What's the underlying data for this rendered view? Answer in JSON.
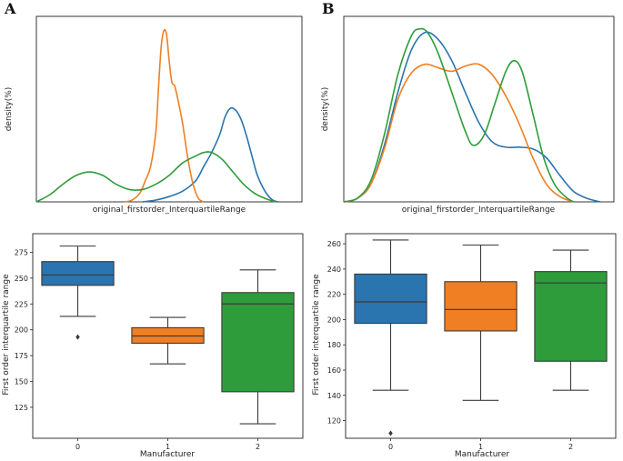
{
  "figure": {
    "panel_labels": [
      "A",
      "B"
    ]
  },
  "colors": {
    "manufacturer_0": "#2a74b0",
    "manufacturer_1": "#ef7f22",
    "manufacturer_2": "#2e9c3b",
    "line": "#3a3a3a"
  },
  "chart_data": [
    {
      "id": "density_A",
      "type": "line",
      "xlabel": "original_firstorder_InterquartileRange",
      "ylabel": "density(%)",
      "x_range": [
        0,
        1
      ],
      "y_range": [
        0,
        1
      ],
      "series": [
        {
          "name": "0",
          "points": [
            [
              0.4,
              0.0
            ],
            [
              0.45,
              0.01
            ],
            [
              0.5,
              0.03
            ],
            [
              0.55,
              0.06
            ],
            [
              0.6,
              0.12
            ],
            [
              0.63,
              0.2
            ],
            [
              0.66,
              0.28
            ],
            [
              0.69,
              0.38
            ],
            [
              0.71,
              0.48
            ],
            [
              0.73,
              0.53
            ],
            [
              0.75,
              0.52
            ],
            [
              0.77,
              0.47
            ],
            [
              0.79,
              0.38
            ],
            [
              0.81,
              0.27
            ],
            [
              0.83,
              0.16
            ],
            [
              0.85,
              0.09
            ],
            [
              0.87,
              0.04
            ],
            [
              0.89,
              0.01
            ],
            [
              0.91,
              0.0
            ]
          ]
        },
        {
          "name": "1",
          "points": [
            [
              0.33,
              0.0
            ],
            [
              0.36,
              0.01
            ],
            [
              0.39,
              0.05
            ],
            [
              0.41,
              0.12
            ],
            [
              0.43,
              0.2
            ],
            [
              0.45,
              0.4
            ],
            [
              0.46,
              0.65
            ],
            [
              0.47,
              0.88
            ],
            [
              0.48,
              0.97
            ],
            [
              0.49,
              0.95
            ],
            [
              0.5,
              0.8
            ],
            [
              0.51,
              0.68
            ],
            [
              0.52,
              0.66
            ],
            [
              0.53,
              0.6
            ],
            [
              0.55,
              0.45
            ],
            [
              0.57,
              0.25
            ],
            [
              0.59,
              0.1
            ],
            [
              0.61,
              0.02
            ],
            [
              0.63,
              0.0
            ]
          ]
        },
        {
          "name": "2",
          "points": [
            [
              0.0,
              0.0
            ],
            [
              0.05,
              0.04
            ],
            [
              0.1,
              0.1
            ],
            [
              0.15,
              0.15
            ],
            [
              0.2,
              0.17
            ],
            [
              0.25,
              0.15
            ],
            [
              0.3,
              0.1
            ],
            [
              0.35,
              0.07
            ],
            [
              0.4,
              0.07
            ],
            [
              0.45,
              0.1
            ],
            [
              0.5,
              0.15
            ],
            [
              0.55,
              0.22
            ],
            [
              0.6,
              0.26
            ],
            [
              0.63,
              0.28
            ],
            [
              0.66,
              0.28
            ],
            [
              0.7,
              0.24
            ],
            [
              0.74,
              0.17
            ],
            [
              0.78,
              0.1
            ],
            [
              0.82,
              0.05
            ],
            [
              0.86,
              0.02
            ],
            [
              0.9,
              0.0
            ]
          ]
        }
      ]
    },
    {
      "id": "boxplot_A",
      "type": "box",
      "xlabel": "Manufacturer",
      "ylabel": "First order interquartile range",
      "categories": [
        "0",
        "1",
        "2"
      ],
      "ylim": [
        95,
        293
      ],
      "yticks": [
        125,
        150,
        175,
        200,
        225,
        250,
        275
      ],
      "boxes": [
        {
          "category": "0",
          "whisker_low": 213,
          "q1": 243,
          "median": 253,
          "q3": 266,
          "whisker_high": 281,
          "outliers": [
            193
          ]
        },
        {
          "category": "1",
          "whisker_low": 167,
          "q1": 187,
          "median": 194,
          "q3": 202,
          "whisker_high": 212,
          "outliers": []
        },
        {
          "category": "2",
          "whisker_low": 109,
          "q1": 140,
          "median": 225,
          "q3": 236,
          "whisker_high": 258,
          "outliers": []
        }
      ]
    },
    {
      "id": "density_B",
      "type": "line",
      "xlabel": "original_firstorder_InterquartileRange",
      "ylabel": "density(%)",
      "x_range": [
        0,
        1
      ],
      "y_range": [
        0,
        1
      ],
      "series": [
        {
          "name": "0",
          "points": [
            [
              0.0,
              0.0
            ],
            [
              0.05,
              0.02
            ],
            [
              0.1,
              0.1
            ],
            [
              0.15,
              0.32
            ],
            [
              0.2,
              0.62
            ],
            [
              0.25,
              0.86
            ],
            [
              0.3,
              0.96
            ],
            [
              0.35,
              0.92
            ],
            [
              0.4,
              0.8
            ],
            [
              0.45,
              0.62
            ],
            [
              0.5,
              0.45
            ],
            [
              0.55,
              0.34
            ],
            [
              0.6,
              0.31
            ],
            [
              0.65,
              0.31
            ],
            [
              0.7,
              0.3
            ],
            [
              0.75,
              0.25
            ],
            [
              0.8,
              0.15
            ],
            [
              0.85,
              0.06
            ],
            [
              0.9,
              0.02
            ],
            [
              0.95,
              0.0
            ]
          ]
        },
        {
          "name": "1",
          "points": [
            [
              0.0,
              0.0
            ],
            [
              0.05,
              0.02
            ],
            [
              0.1,
              0.1
            ],
            [
              0.15,
              0.3
            ],
            [
              0.2,
              0.58
            ],
            [
              0.25,
              0.73
            ],
            [
              0.3,
              0.78
            ],
            [
              0.35,
              0.76
            ],
            [
              0.4,
              0.74
            ],
            [
              0.45,
              0.77
            ],
            [
              0.5,
              0.78
            ],
            [
              0.55,
              0.72
            ],
            [
              0.6,
              0.6
            ],
            [
              0.65,
              0.44
            ],
            [
              0.7,
              0.25
            ],
            [
              0.75,
              0.1
            ],
            [
              0.8,
              0.03
            ],
            [
              0.85,
              0.0
            ]
          ]
        },
        {
          "name": "2",
          "points": [
            [
              0.0,
              0.0
            ],
            [
              0.05,
              0.02
            ],
            [
              0.1,
              0.12
            ],
            [
              0.15,
              0.38
            ],
            [
              0.2,
              0.72
            ],
            [
              0.25,
              0.94
            ],
            [
              0.28,
              0.98
            ],
            [
              0.31,
              0.96
            ],
            [
              0.35,
              0.84
            ],
            [
              0.4,
              0.62
            ],
            [
              0.45,
              0.4
            ],
            [
              0.48,
              0.32
            ],
            [
              0.52,
              0.38
            ],
            [
              0.56,
              0.56
            ],
            [
              0.6,
              0.74
            ],
            [
              0.63,
              0.8
            ],
            [
              0.66,
              0.74
            ],
            [
              0.7,
              0.5
            ],
            [
              0.74,
              0.25
            ],
            [
              0.78,
              0.1
            ],
            [
              0.82,
              0.03
            ],
            [
              0.85,
              0.0
            ]
          ]
        }
      ]
    },
    {
      "id": "boxplot_B",
      "type": "box",
      "xlabel": "Manufacturer",
      "ylabel": "First order interquartile range",
      "categories": [
        "0",
        "1",
        "2"
      ],
      "ylim": [
        106,
        268
      ],
      "yticks": [
        120,
        140,
        160,
        180,
        200,
        220,
        240,
        260
      ],
      "boxes": [
        {
          "category": "0",
          "whisker_low": 144,
          "q1": 197,
          "median": 214,
          "q3": 236,
          "whisker_high": 263,
          "outliers": [
            110
          ]
        },
        {
          "category": "1",
          "whisker_low": 136,
          "q1": 191,
          "median": 208,
          "q3": 230,
          "whisker_high": 259,
          "outliers": []
        },
        {
          "category": "2",
          "whisker_low": 144,
          "q1": 167,
          "median": 229,
          "q3": 238,
          "whisker_high": 255,
          "outliers": []
        }
      ]
    }
  ]
}
